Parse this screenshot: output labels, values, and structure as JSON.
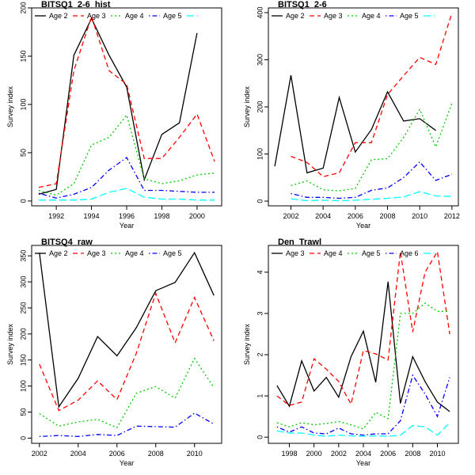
{
  "chart_data": [
    {
      "type": "line",
      "title": "BITSQ1_2-6_hist",
      "xlabel": "Year",
      "ylabel": "Survey index",
      "xlim": [
        1990.6,
        2001.4
      ],
      "ylim": [
        -5,
        200
      ],
      "xticks": [
        1992,
        1994,
        1996,
        1998,
        2000
      ],
      "yticks": [
        0,
        50,
        100,
        150,
        200
      ],
      "legend_position": "top",
      "series": [
        {
          "name": "Age 2",
          "color": "#000000",
          "dash": "solid",
          "x": [
            1991,
            1992,
            1993,
            1994,
            1995,
            1996,
            1997,
            1998,
            1999,
            2000
          ],
          "y": [
            7,
            12,
            151,
            189,
            151,
            118,
            22,
            69,
            81,
            174
          ]
        },
        {
          "name": "Age 3",
          "color": "#ff0000",
          "dash": "dashed",
          "x": [
            1991,
            1992,
            1993,
            1994,
            1995,
            1996,
            1997,
            1998,
            1999,
            2000,
            2001
          ],
          "y": [
            14,
            18,
            135,
            191,
            135,
            121,
            44,
            44,
            66,
            90,
            41
          ]
        },
        {
          "name": "Age 4",
          "color": "#00cc00",
          "dash": "dotted",
          "x": [
            1991,
            1992,
            1993,
            1994,
            1995,
            1996,
            1997,
            1998,
            1999,
            2000,
            2001
          ],
          "y": [
            11,
            6,
            18,
            58,
            66,
            89,
            23,
            18,
            21,
            27,
            29
          ]
        },
        {
          "name": "Age 5",
          "color": "#0000ff",
          "dash": "dotdash",
          "x": [
            1991,
            1992,
            1993,
            1994,
            1995,
            1996,
            1997,
            1998,
            1999,
            2000,
            2001
          ],
          "y": [
            8,
            3,
            7,
            14,
            32,
            45,
            11,
            11,
            10,
            9,
            9
          ]
        },
        {
          "name": "",
          "color": "#00ffff",
          "dash": "longdash",
          "x": [
            1991,
            1992,
            1993,
            1994,
            1995,
            1996,
            1997,
            1998,
            1999,
            2000,
            2001
          ],
          "y": [
            1,
            1,
            1,
            2,
            9,
            13,
            4,
            2,
            2,
            1,
            1
          ]
        }
      ]
    },
    {
      "type": "line",
      "title": "BITSQ1_2-6",
      "xlabel": "Year",
      "ylabel": "Survey index",
      "xlim": [
        2000.6,
        2012.4
      ],
      "ylim": [
        -10,
        410
      ],
      "xticks": [
        2002,
        2004,
        2006,
        2008,
        2010,
        2012
      ],
      "yticks": [
        0,
        100,
        200,
        300,
        400
      ],
      "legend_position": "top",
      "series": [
        {
          "name": "Age 2",
          "color": "#000000",
          "dash": "solid",
          "x": [
            2001,
            2002,
            2003,
            2004,
            2005,
            2006,
            2007,
            2008,
            2009,
            2010,
            2011
          ],
          "y": [
            74,
            267,
            60,
            70,
            220,
            104,
            152,
            232,
            170,
            175,
            150
          ]
        },
        {
          "name": "Age 3",
          "color": "#ff0000",
          "dash": "dashed",
          "x": [
            2002,
            2003,
            2004,
            2005,
            2006,
            2007,
            2008,
            2009,
            2010,
            2011,
            2012
          ],
          "y": [
            95,
            82,
            52,
            60,
            124,
            124,
            226,
            266,
            305,
            290,
            400
          ]
        },
        {
          "name": "Age 4",
          "color": "#00cc00",
          "dash": "dotted",
          "x": [
            2002,
            2003,
            2004,
            2005,
            2006,
            2007,
            2008,
            2009,
            2010,
            2011,
            2012
          ],
          "y": [
            33,
            43,
            24,
            22,
            27,
            88,
            90,
            135,
            195,
            115,
            208
          ]
        },
        {
          "name": "Age 5",
          "color": "#0000ff",
          "dash": "dotdash",
          "x": [
            2002,
            2003,
            2004,
            2005,
            2006,
            2007,
            2008,
            2009,
            2010,
            2011,
            2012
          ],
          "y": [
            16,
            8,
            8,
            6,
            8,
            23,
            28,
            50,
            83,
            44,
            57
          ]
        },
        {
          "name": "",
          "color": "#00ffff",
          "dash": "longdash",
          "x": [
            2002,
            2003,
            2004,
            2005,
            2006,
            2007,
            2008,
            2009,
            2010,
            2011,
            2012
          ],
          "y": [
            5,
            1,
            2,
            1,
            2,
            4,
            6,
            9,
            20,
            11,
            10
          ]
        }
      ]
    },
    {
      "type": "line",
      "title": "BITSQ4_raw",
      "xlabel": "Year",
      "ylabel": "Survey index",
      "xlim": [
        2001.6,
        2011.4
      ],
      "ylim": [
        -10,
        370
      ],
      "xticks": [
        2002,
        2004,
        2006,
        2008,
        2010
      ],
      "yticks": [
        0,
        50,
        100,
        150,
        200,
        250,
        300,
        350
      ],
      "legend_position": "top",
      "series": [
        {
          "name": "Age 2",
          "color": "#000000",
          "dash": "solid",
          "x": [
            2002,
            2003,
            2004,
            2005,
            2006,
            2007,
            2008,
            2009,
            2010,
            2011
          ],
          "y": [
            356,
            60,
            115,
            195,
            158,
            212,
            283,
            299,
            356,
            274
          ]
        },
        {
          "name": "Age 3",
          "color": "#ff0000",
          "dash": "dashed",
          "x": [
            2002,
            2003,
            2004,
            2005,
            2006,
            2007,
            2008,
            2009,
            2010,
            2011
          ],
          "y": [
            142,
            53,
            73,
            110,
            74,
            163,
            278,
            183,
            270,
            187
          ]
        },
        {
          "name": "Age 4",
          "color": "#00cc00",
          "dash": "dotted",
          "x": [
            2002,
            2003,
            2004,
            2005,
            2006,
            2007,
            2008,
            2009,
            2010,
            2011
          ],
          "y": [
            47,
            23,
            31,
            36,
            20,
            86,
            99,
            77,
            153,
            97
          ]
        },
        {
          "name": "Age 5",
          "color": "#0000ff",
          "dash": "dotdash",
          "x": [
            2002,
            2003,
            2004,
            2005,
            2006,
            2007,
            2008,
            2009,
            2010,
            2011
          ],
          "y": [
            3,
            5,
            3,
            7,
            5,
            23,
            22,
            21,
            48,
            27
          ]
        }
      ]
    },
    {
      "type": "line",
      "title": "Den_Trawl",
      "xlabel": "Year",
      "ylabel": "Survey index",
      "xlim": [
        1996.3,
        2011.7
      ],
      "ylim": [
        -0.15,
        4.65
      ],
      "xticks": [
        1998,
        2000,
        2002,
        2004,
        2006,
        2008,
        2010
      ],
      "yticks": [
        0,
        1,
        2,
        3,
        4
      ],
      "legend_position": "top",
      "series": [
        {
          "name": "Age 3",
          "color": "#000000",
          "dash": "solid",
          "x": [
            1997,
            1998,
            1999,
            2000,
            2001,
            2002,
            2003,
            2004,
            2005,
            2006,
            2007,
            2008,
            2009,
            2010,
            2011
          ],
          "y": [
            1.25,
            0.75,
            1.85,
            1.12,
            1.45,
            0.97,
            1.95,
            2.57,
            1.33,
            3.77,
            0.82,
            1.95,
            1.35,
            0.85,
            0.62
          ]
        },
        {
          "name": "Age 4",
          "color": "#ff0000",
          "dash": "dashed",
          "x": [
            1997,
            1998,
            1999,
            2000,
            2001,
            2002,
            2003,
            2004,
            2005,
            2006,
            2007,
            2008,
            2009,
            2010,
            2011
          ],
          "y": [
            1.0,
            0.77,
            0.85,
            1.9,
            1.65,
            1.35,
            0.8,
            2.1,
            2.02,
            1.87,
            4.5,
            2.55,
            4.0,
            4.5,
            2.5
          ]
        },
        {
          "name": "Age 5",
          "color": "#00cc00",
          "dash": "dotted",
          "x": [
            1997,
            1998,
            1999,
            2000,
            2001,
            2002,
            2003,
            2004,
            2005,
            2006,
            2007,
            2008,
            2009,
            2010,
            2011
          ],
          "y": [
            0.35,
            0.25,
            0.35,
            0.3,
            0.33,
            0.38,
            0.3,
            0.2,
            0.6,
            0.45,
            3.0,
            3.0,
            3.25,
            3.05,
            3.05
          ]
        },
        {
          "name": "Age 6",
          "color": "#0000ff",
          "dash": "dotdash",
          "x": [
            1997,
            1998,
            1999,
            2000,
            2001,
            2002,
            2003,
            2004,
            2005,
            2006,
            2007,
            2008,
            2009,
            2010,
            2011
          ],
          "y": [
            0.25,
            0.12,
            0.25,
            0.1,
            0.08,
            0.22,
            0.08,
            0.05,
            0.08,
            0.08,
            0.4,
            1.5,
            1.05,
            0.5,
            1.45
          ]
        },
        {
          "name": "",
          "color": "#00ffff",
          "dash": "longdash",
          "x": [
            1997,
            1998,
            1999,
            2000,
            2001,
            2002,
            2003,
            2004,
            2005,
            2006,
            2007,
            2008,
            2009,
            2010,
            2011
          ],
          "y": [
            0.15,
            0.1,
            0.1,
            0.05,
            0.02,
            0.05,
            0.03,
            0.02,
            0.03,
            0.02,
            0.05,
            0.28,
            0.25,
            0.05,
            0.35
          ]
        }
      ]
    }
  ]
}
